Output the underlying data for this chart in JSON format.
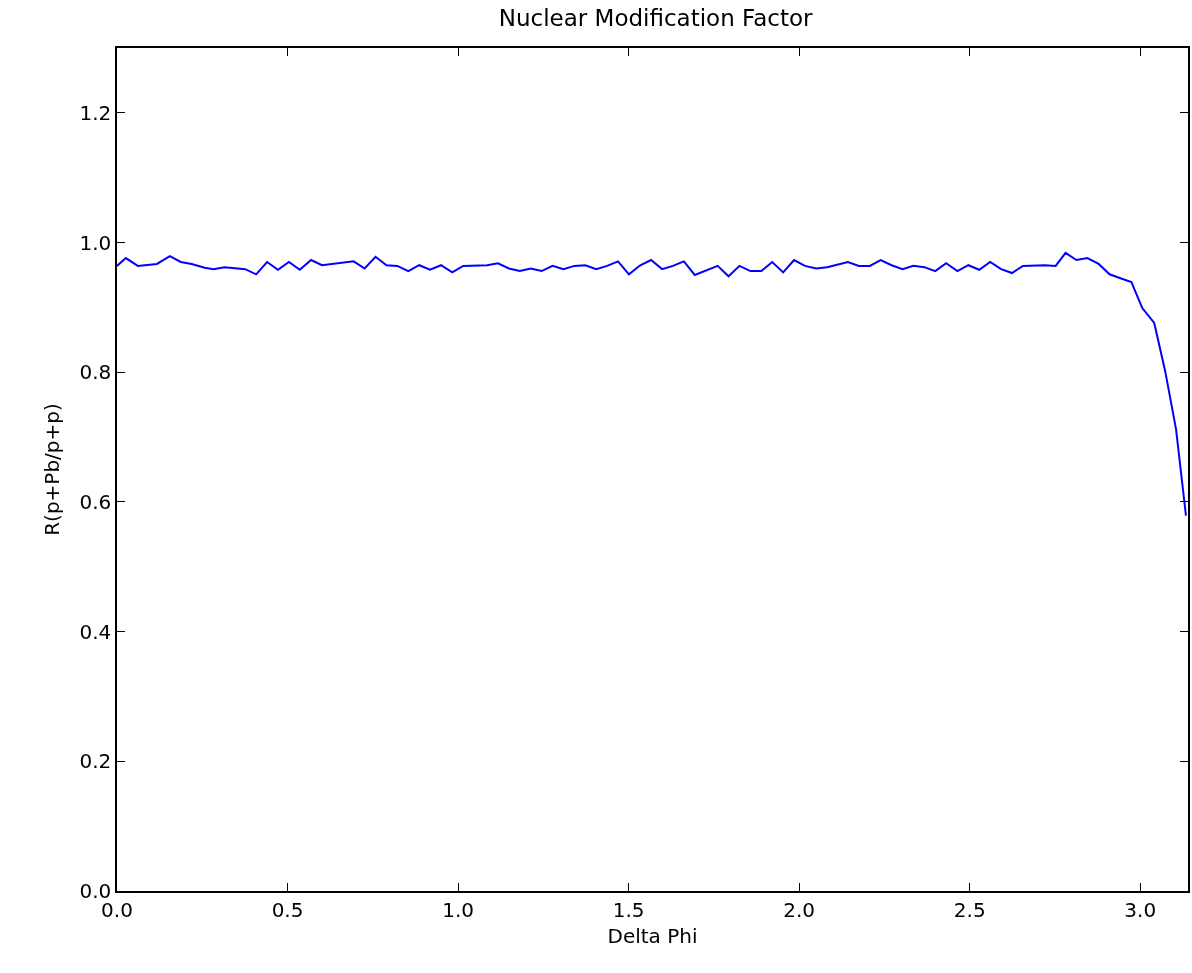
{
  "chart_data": {
    "type": "line",
    "title": "Nuclear Modification Factor",
    "xlabel": "Delta Phi",
    "ylabel": "R(p+Pb/p+p)",
    "x": [
      0,
      0.026,
      0.061,
      0.117,
      0.155,
      0.187,
      0.219,
      0.257,
      0.283,
      0.315,
      0.376,
      0.408,
      0.44,
      0.472,
      0.504,
      0.536,
      0.569,
      0.601,
      0.694,
      0.726,
      0.758,
      0.79,
      0.822,
      0.854,
      0.886,
      0.918,
      0.95,
      0.983,
      1.015,
      1.085,
      1.117,
      1.149,
      1.181,
      1.213,
      1.245,
      1.277,
      1.309,
      1.341,
      1.373,
      1.405,
      1.437,
      1.469,
      1.501,
      1.534,
      1.566,
      1.598,
      1.63,
      1.662,
      1.694,
      1.761,
      1.793,
      1.825,
      1.857,
      1.889,
      1.921,
      1.953,
      1.985,
      2.017,
      2.05,
      2.082,
      2.143,
      2.175,
      2.207,
      2.239,
      2.271,
      2.303,
      2.335,
      2.367,
      2.399,
      2.431,
      2.464,
      2.496,
      2.528,
      2.56,
      2.592,
      2.624,
      2.656,
      2.72,
      2.752,
      2.781,
      2.813,
      2.845,
      2.878,
      2.91,
      2.942,
      2.974,
      3.006,
      3.041,
      3.073,
      3.105,
      3.134
    ],
    "series": [
      {
        "color": "#0000ff",
        "values": [
          0.964,
          0.976,
          0.964,
          0.967,
          0.979,
          0.97,
          0.967,
          0.961,
          0.959,
          0.962,
          0.959,
          0.951,
          0.97,
          0.958,
          0.97,
          0.958,
          0.973,
          0.965,
          0.971,
          0.96,
          0.978,
          0.965,
          0.964,
          0.956,
          0.965,
          0.958,
          0.965,
          0.954,
          0.964,
          0.965,
          0.968,
          0.96,
          0.956,
          0.96,
          0.956,
          0.964,
          0.959,
          0.964,
          0.965,
          0.959,
          0.964,
          0.971,
          0.951,
          0.965,
          0.973,
          0.959,
          0.964,
          0.971,
          0.95,
          0.964,
          0.948,
          0.964,
          0.956,
          0.956,
          0.97,
          0.954,
          0.973,
          0.964,
          0.96,
          0.962,
          0.97,
          0.964,
          0.964,
          0.973,
          0.965,
          0.959,
          0.964,
          0.962,
          0.956,
          0.968,
          0.956,
          0.965,
          0.958,
          0.97,
          0.959,
          0.953,
          0.964,
          0.965,
          0.964,
          0.984,
          0.973,
          0.976,
          0.967,
          0.951,
          0.945,
          0.939,
          0.899,
          0.876,
          0.802,
          0.712,
          0.579
        ]
      }
    ],
    "xlim": [
      0,
      3.14
    ],
    "xticks": [
      {
        "value": 0,
        "label": "0.0"
      },
      0.5,
      {
        "value": 1,
        "label": "1.0"
      },
      1.5,
      {
        "value": 2,
        "label": "2.0"
      },
      2.5,
      {
        "value": 3,
        "label": "3.0"
      }
    ],
    "ylim": [
      0,
      1.3
    ],
    "yticks": [
      {
        "value": 0,
        "label": "0.0"
      },
      0.2,
      0.4,
      0.6,
      0.8,
      {
        "value": 1,
        "label": "1.0"
      },
      1.2
    ],
    "marker": "none",
    "line_style": "solid"
  }
}
